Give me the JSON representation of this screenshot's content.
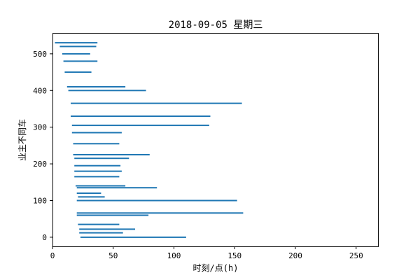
{
  "chart_data": {
    "type": "bar",
    "orientation": "horizontal",
    "title": "2018-09-05 星期三",
    "xlabel": "时刻/点(h)",
    "ylabel": "业主不同车",
    "xlim": [
      0,
      268
    ],
    "ylim": [
      -25,
      557
    ],
    "xticks": [
      0,
      50,
      100,
      150,
      200,
      250
    ],
    "yticks": [
      0,
      100,
      200,
      300,
      400,
      500
    ],
    "grid": false,
    "color": "#1f77b4",
    "series": [
      {
        "values": [
          {
            "y": 0,
            "start": 23,
            "end": 110
          },
          {
            "y": 12,
            "start": 22,
            "end": 58
          },
          {
            "y": 22,
            "start": 22,
            "end": 68
          },
          {
            "y": 35,
            "start": 21,
            "end": 55
          },
          {
            "y": 60,
            "start": 20,
            "end": 79
          },
          {
            "y": 66,
            "start": 20,
            "end": 157
          },
          {
            "y": 100,
            "start": 20,
            "end": 152
          },
          {
            "y": 110,
            "start": 21,
            "end": 43
          },
          {
            "y": 120,
            "start": 20,
            "end": 40
          },
          {
            "y": 135,
            "start": 20,
            "end": 86
          },
          {
            "y": 140,
            "start": 19,
            "end": 60
          },
          {
            "y": 165,
            "start": 18,
            "end": 55
          },
          {
            "y": 180,
            "start": 18,
            "end": 57
          },
          {
            "y": 195,
            "start": 18,
            "end": 56
          },
          {
            "y": 215,
            "start": 18,
            "end": 63
          },
          {
            "y": 225,
            "start": 17,
            "end": 80
          },
          {
            "y": 255,
            "start": 17,
            "end": 55
          },
          {
            "y": 285,
            "start": 16,
            "end": 57
          },
          {
            "y": 305,
            "start": 16,
            "end": 129
          },
          {
            "y": 330,
            "start": 15,
            "end": 130
          },
          {
            "y": 365,
            "start": 15,
            "end": 156
          },
          {
            "y": 400,
            "start": 13,
            "end": 77
          },
          {
            "y": 410,
            "start": 12,
            "end": 60
          },
          {
            "y": 450,
            "start": 10,
            "end": 32
          },
          {
            "y": 480,
            "start": 9,
            "end": 37
          },
          {
            "y": 500,
            "start": 8,
            "end": 31
          },
          {
            "y": 520,
            "start": 6,
            "end": 36
          },
          {
            "y": 530,
            "start": 2,
            "end": 37
          }
        ]
      }
    ]
  }
}
